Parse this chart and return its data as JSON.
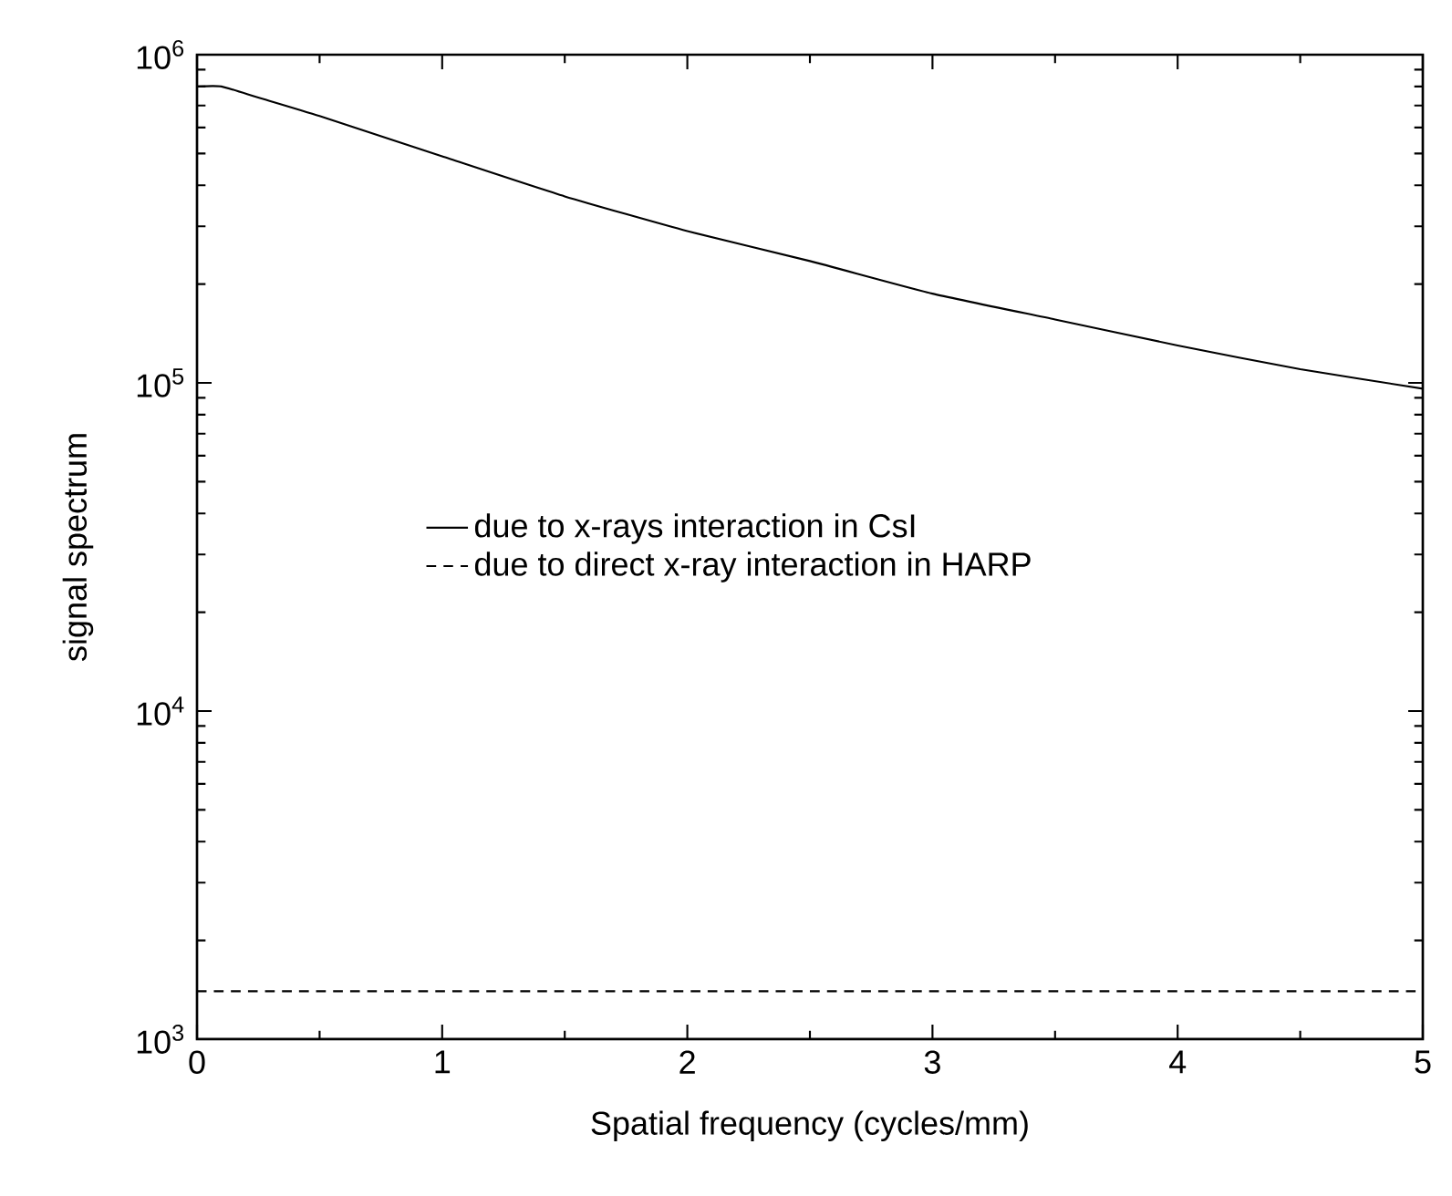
{
  "chart_data": {
    "type": "line",
    "xlabel": "Spatial frequency (cycles/mm)",
    "ylabel": "signal spectrum",
    "log": "y",
    "xlim": [
      0,
      5
    ],
    "ylim": [
      1000,
      1000000
    ],
    "xticks": [
      0,
      1,
      2,
      3,
      4,
      5
    ],
    "yticks": [
      {
        "value": 1000,
        "label": "10$^{3}$"
      },
      {
        "value": 10000,
        "label": "10$^{4}$"
      },
      {
        "value": 100000,
        "label": "10$^{5}$"
      },
      {
        "value": 1000000,
        "label": "10$^{6}$"
      }
    ],
    "grid": false,
    "legend": "left",
    "marker": "none",
    "series": [
      {
        "name": "due to x-rays interaction in CsI",
        "color": "#000000",
        "line_style": "solid",
        "x": [
          0,
          0.1,
          0.25,
          0.5,
          1,
          1.5,
          2,
          2.5,
          3,
          3.5,
          4,
          4.5,
          5
        ],
        "values": [
          800000,
          800000,
          740000,
          650000,
          490000,
          370000,
          290000,
          235000,
          187000,
          156000,
          130000,
          110000,
          96000
        ]
      },
      {
        "name": "due to direct x-ray interaction in HARP",
        "color": "#000000",
        "line_style": "dashed",
        "x": [
          0,
          5
        ],
        "values": [
          1400,
          1400
        ]
      }
    ]
  }
}
